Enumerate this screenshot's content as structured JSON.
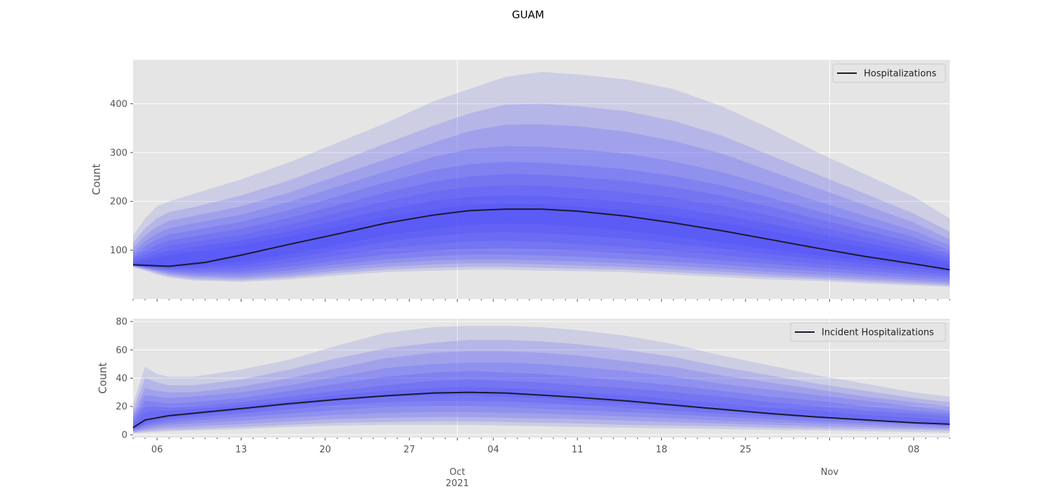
{
  "figure": {
    "title": "GUAM"
  },
  "colors": {
    "panel_bg": "#e5e5e5",
    "grid": "#ffffff",
    "band": "#3a3aff",
    "band_outer": "#7a7ae0",
    "median_line": "#1a1a2e",
    "tick": "#555555"
  },
  "x_axis": {
    "start_date": "2021-09-04",
    "end_date": "2021-11-11",
    "minor_tick_labels": [
      {
        "date": "2021-09-06",
        "label": "06"
      },
      {
        "date": "2021-09-13",
        "label": "13"
      },
      {
        "date": "2021-09-20",
        "label": "20"
      },
      {
        "date": "2021-09-27",
        "label": "27"
      },
      {
        "date": "2021-10-04",
        "label": "04"
      },
      {
        "date": "2021-10-11",
        "label": "11"
      },
      {
        "date": "2021-10-18",
        "label": "18"
      },
      {
        "date": "2021-10-25",
        "label": "25"
      },
      {
        "date": "2021-11-08",
        "label": "08"
      }
    ],
    "major_tick_labels": [
      {
        "date": "2021-10-01",
        "label": "Oct",
        "sublabel": "2021"
      },
      {
        "date": "2021-11-01",
        "label": "Nov",
        "sublabel": ""
      }
    ]
  },
  "chart_data": [
    {
      "type": "area",
      "ylabel": "Count",
      "ylim": [
        0,
        490
      ],
      "yticks": [
        100,
        200,
        300,
        400
      ],
      "grid": true,
      "legend": {
        "placement": "top-right",
        "entries": [
          "Hospitalizations"
        ]
      },
      "series": [
        {
          "name": "Hospitalizations",
          "kind": "median",
          "x": [
            "2021-09-04",
            "2021-09-07",
            "2021-09-10",
            "2021-09-13",
            "2021-09-17",
            "2021-09-21",
            "2021-09-25",
            "2021-09-29",
            "2021-10-02",
            "2021-10-05",
            "2021-10-08",
            "2021-10-11",
            "2021-10-15",
            "2021-10-19",
            "2021-10-23",
            "2021-10-27",
            "2021-10-31",
            "2021-11-04",
            "2021-11-08",
            "2021-11-11"
          ],
          "values": [
            70,
            67,
            75,
            90,
            112,
            133,
            155,
            172,
            181,
            184,
            184,
            180,
            170,
            156,
            140,
            122,
            104,
            87,
            72,
            60
          ]
        }
      ],
      "bands": {
        "x": [
          "2021-09-04",
          "2021-09-05",
          "2021-09-06",
          "2021-09-07",
          "2021-09-09",
          "2021-09-13",
          "2021-09-17",
          "2021-09-21",
          "2021-09-25",
          "2021-09-29",
          "2021-10-02",
          "2021-10-05",
          "2021-10-08",
          "2021-10-11",
          "2021-10-15",
          "2021-10-19",
          "2021-10-23",
          "2021-10-27",
          "2021-10-31",
          "2021-11-04",
          "2021-11-08",
          "2021-11-11"
        ],
        "levels": [
          {
            "lower": [
              65,
              58,
              50,
              44,
              38,
              35,
              40,
              48,
              55,
              58,
              60,
              60,
              58,
              57,
              55,
              50,
              45,
              40,
              37,
              32,
              28,
              25
            ],
            "upper": [
              130,
              165,
              190,
              200,
              215,
              245,
              280,
              320,
              360,
              405,
              430,
              455,
              465,
              460,
              450,
              430,
              395,
              350,
              300,
              255,
              210,
              165
            ]
          },
          {
            "lower": [
              66,
              60,
              53,
              47,
              41,
              38,
              44,
              53,
              60,
              64,
              66,
              66,
              64,
              62,
              60,
              55,
              50,
              45,
              41,
              36,
              31,
              28
            ],
            "upper": [
              115,
              145,
              165,
              178,
              188,
              212,
              243,
              280,
              318,
              355,
              380,
              398,
              400,
              395,
              385,
              365,
              335,
              295,
              255,
              215,
              175,
              138
            ]
          },
          {
            "lower": [
              67,
              62,
              56,
              50,
              45,
              42,
              48,
              58,
              66,
              71,
              73,
              73,
              71,
              69,
              66,
              61,
              56,
              50,
              45,
              40,
              35,
              31
            ],
            "upper": [
              105,
              130,
              148,
              160,
              170,
              190,
              218,
              252,
              286,
              320,
              344,
              357,
              358,
              354,
              343,
              324,
              298,
              263,
              227,
              192,
              157,
              122
            ]
          },
          {
            "lower": [
              68,
              63,
              58,
              53,
              48,
              46,
              53,
              64,
              73,
              79,
              81,
              81,
              79,
              77,
              73,
              68,
              62,
              56,
              50,
              45,
              39,
              35
            ],
            "upper": [
              97,
              118,
              134,
              145,
              155,
              173,
              199,
              230,
              261,
              291,
              307,
              313,
              312,
              307,
              298,
              282,
              260,
              232,
              200,
              170,
              140,
              110
            ]
          },
          {
            "lower": [
              68,
              64,
              60,
              56,
              52,
              51,
              59,
              71,
              81,
              88,
              91,
              91,
              89,
              87,
              82,
              76,
              70,
              63,
              57,
              50,
              44,
              40
            ],
            "upper": [
              90,
              108,
              122,
              132,
              141,
              158,
              182,
              210,
              239,
              264,
              276,
              281,
              279,
              274,
              266,
              252,
              233,
              208,
              180,
              153,
              127,
              100
            ]
          },
          {
            "lower": [
              69,
              65,
              62,
              59,
              56,
              56,
              66,
              79,
              91,
              99,
              103,
              104,
              102,
              99,
              94,
              87,
              79,
              72,
              64,
              57,
              50,
              45
            ],
            "upper": [
              85,
              99,
              111,
              120,
              128,
              144,
              166,
              192,
              218,
              240,
              251,
              256,
              255,
              250,
              242,
              229,
              212,
              189,
              164,
              140,
              116,
              92
            ]
          },
          {
            "lower": [
              69,
              66,
              64,
              62,
              60,
              62,
              74,
              89,
              103,
              113,
              118,
              119,
              117,
              113,
              107,
              99,
              90,
              81,
              72,
              64,
              56,
              50
            ],
            "upper": [
              80,
              91,
              101,
              109,
              117,
              131,
              152,
              176,
              200,
              220,
              229,
              233,
              232,
              227,
              219,
              207,
              191,
              171,
              148,
              127,
              105,
              84
            ]
          },
          {
            "lower": [
              69,
              67,
              65,
              64,
              64,
              69,
              83,
              100,
              117,
              129,
              135,
              137,
              135,
              131,
              124,
              114,
              103,
              92,
              82,
              72,
              63,
              56
            ],
            "upper": [
              76,
              84,
              92,
              99,
              106,
              120,
              139,
              161,
              183,
              201,
              209,
              212,
              211,
              206,
              199,
              187,
              172,
              154,
              134,
              115,
              96,
              77
            ]
          },
          {
            "lower": [
              70,
              67,
              66,
              66,
              68,
              76,
              92,
              111,
              130,
              144,
              152,
              155,
              153,
              148,
              140,
              128,
              115,
              102,
              90,
              79,
              69,
              61
            ],
            "upper": [
              73,
              78,
              84,
              90,
              97,
              110,
              128,
              148,
              168,
              184,
              192,
              195,
              194,
              189,
              182,
              170,
              156,
              139,
              122,
              105,
              88,
              71
            ]
          }
        ]
      }
    },
    {
      "type": "area",
      "ylabel": "Count",
      "ylim": [
        -2,
        82
      ],
      "yticks": [
        0,
        20,
        40,
        60,
        80
      ],
      "grid": true,
      "legend": {
        "placement": "top-right",
        "entries": [
          "Incident Hospitalizations"
        ]
      },
      "series": [
        {
          "name": "Incident Hospitalizations",
          "kind": "median",
          "x": [
            "2021-09-04",
            "2021-09-05",
            "2021-09-07",
            "2021-09-10",
            "2021-09-13",
            "2021-09-17",
            "2021-09-21",
            "2021-09-25",
            "2021-09-29",
            "2021-10-02",
            "2021-10-05",
            "2021-10-08",
            "2021-10-11",
            "2021-10-15",
            "2021-10-19",
            "2021-10-23",
            "2021-10-27",
            "2021-10-31",
            "2021-11-04",
            "2021-11-08",
            "2021-11-11"
          ],
          "values": [
            5,
            10.5,
            13.5,
            16,
            18.5,
            22,
            25,
            27.5,
            29.5,
            30,
            29.5,
            28,
            26.5,
            24,
            21,
            18,
            15,
            12.5,
            10.5,
            8.5,
            7.5
          ]
        }
      ],
      "bands": {
        "x": [
          "2021-09-04",
          "2021-09-05",
          "2021-09-06",
          "2021-09-07",
          "2021-09-09",
          "2021-09-13",
          "2021-09-17",
          "2021-09-21",
          "2021-09-25",
          "2021-09-29",
          "2021-10-02",
          "2021-10-05",
          "2021-10-08",
          "2021-10-11",
          "2021-10-15",
          "2021-10-19",
          "2021-10-23",
          "2021-10-27",
          "2021-10-31",
          "2021-11-04",
          "2021-11-08",
          "2021-11-11"
        ],
        "levels": [
          {
            "lower": [
              1,
              1.5,
              2,
              2.5,
              3,
              4,
              5.5,
              6.5,
              7,
              7,
              7,
              6.5,
              6,
              5.5,
              5,
              4.5,
              4,
              3.5,
              3,
              2.5,
              2,
              1.5
            ],
            "upper": [
              22,
              48,
              43,
              41,
              41,
              46,
              53,
              63,
              72,
              76,
              77,
              77,
              76,
              74,
              70,
              64,
              56,
              49,
              42,
              36,
              30,
              27
            ]
          },
          {
            "lower": [
              1.5,
              2.5,
              3,
              3.5,
              4,
              5.5,
              7,
              8.5,
              9,
              9.5,
              9.5,
              9,
              8.5,
              8,
              7,
              6.5,
              6,
              5,
              4.5,
              4,
              3.5,
              3
            ],
            "upper": [
              18,
              40,
              37,
              35,
              35,
              39,
              46,
              54,
              61,
              65,
              67,
              67,
              66,
              64,
              60,
              55,
              48,
              42,
              36,
              31,
              26,
              23
            ]
          },
          {
            "lower": [
              2,
              3.5,
              4.5,
              5,
              6,
              7.5,
              9.5,
              11,
              12,
              12.5,
              12.5,
              12,
              11.5,
              11,
              10,
              9,
              8,
              7,
              6,
              5.5,
              4.5,
              4
            ],
            "upper": [
              15,
              33,
              31,
              30,
              30,
              34,
              40,
              47,
              54,
              58,
              59,
              59,
              58,
              56,
              52,
              48,
              42,
              37,
              32,
              27,
              23,
              20
            ]
          },
          {
            "lower": [
              2.5,
              4.5,
              6,
              7,
              8,
              10,
              12,
              14,
              15.5,
              16,
              16,
              15.5,
              15,
              14,
              13,
              11.5,
              10,
              9,
              8,
              7,
              6,
              5
            ],
            "upper": [
              13,
              28,
              27,
              26,
              27,
              30,
              35,
              41,
              47,
              50,
              51,
              51,
              50,
              48,
              45,
              41,
              36,
              32,
              28,
              24,
              20,
              17
            ]
          },
          {
            "lower": [
              3,
              6,
              7.5,
              8.5,
              10,
              12.5,
              15,
              17.5,
              19.5,
              20,
              20,
              19.5,
              18.5,
              17.5,
              16,
              14.5,
              12.5,
              11,
              9.5,
              8.5,
              7.5,
              6
            ],
            "upper": [
              11,
              24,
              23,
              22,
              23,
              26,
              31,
              36,
              41,
              44,
              45,
              44,
              43,
              41,
              38,
              35,
              31,
              27,
              24,
              20,
              17,
              15
            ]
          },
          {
            "lower": [
              3.5,
              7,
              9,
              10.5,
              12,
              15,
              18,
              21,
              23,
              24,
              24,
              23.5,
              22.5,
              21,
              19,
              17,
              15,
              13,
              11.5,
              10,
              8.5,
              7
            ],
            "upper": [
              9,
              20,
              20,
              19,
              20,
              23,
              27,
              31,
              35,
              38,
              39,
              38,
              37,
              35,
              33,
              30,
              27,
              23,
              20,
              17,
              15,
              13
            ]
          },
          {
            "lower": [
              4,
              8,
              10.5,
              12,
              13.5,
              17,
              20.5,
              24,
              26.5,
              28,
              28,
              27,
              26,
              24,
              22,
              19.5,
              17,
              15,
              13,
              11,
              9.5,
              8
            ],
            "upper": [
              7,
              16,
              17,
              17,
              18,
              21,
              24,
              28,
              31,
              33,
              34,
              33,
              32,
              30,
              28,
              25,
              22,
              19,
              17,
              14,
              12,
              10
            ]
          }
        ]
      }
    }
  ]
}
